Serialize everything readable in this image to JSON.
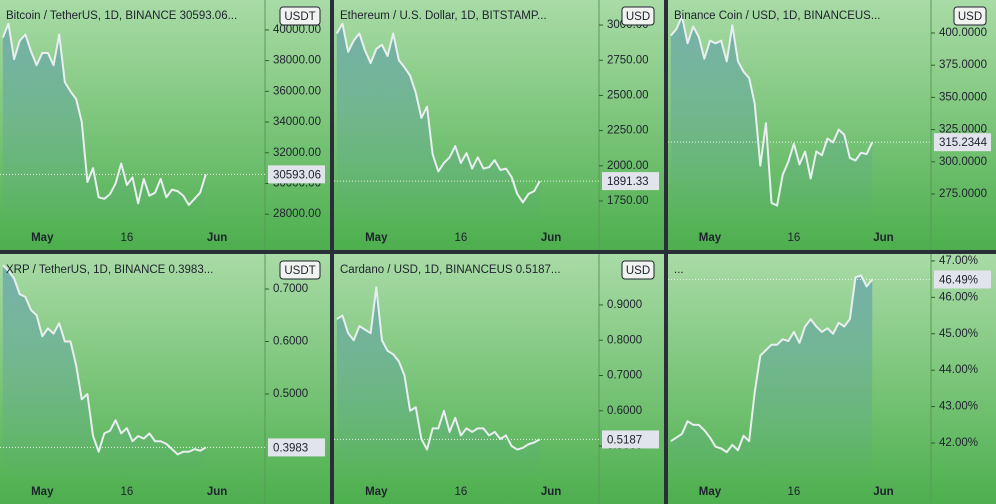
{
  "chart_data": [
    {
      "type": "line",
      "title": "Bitcoin / TetherUS, 1D, BINANCE  30593.06...",
      "currency": "USDT",
      "categories": [
        null,
        null,
        null,
        null,
        null,
        null,
        null,
        "May",
        null,
        null,
        null,
        null,
        null,
        null,
        null,
        null,
        null,
        null,
        null,
        null,
        null,
        null,
        "16",
        null,
        null,
        null,
        null,
        null,
        null,
        null,
        null,
        null,
        null,
        null,
        null,
        null,
        null,
        null,
        "Jun",
        null,
        null,
        null,
        null,
        null,
        null,
        null,
        null
      ],
      "values": [
        39500,
        40400,
        38100,
        39300,
        39700,
        38600,
        37700,
        38500,
        38500,
        37700,
        39700,
        36600,
        36000,
        35500,
        34000,
        30100,
        31000,
        29100,
        29000,
        29300,
        30000,
        31300,
        29900,
        30400,
        28700,
        30300,
        29200,
        29400,
        30300,
        29100,
        29600,
        29500,
        29200,
        28600,
        29000,
        29400,
        30593.06,
        null,
        null,
        null,
        null,
        null,
        null,
        null,
        null,
        null,
        null
      ],
      "ylim": [
        27100,
        41950
      ],
      "yticks": [
        {
          "value": 28000,
          "label": "28000.00"
        },
        {
          "value": 30000,
          "label": "30000.00"
        },
        {
          "value": 32000,
          "label": "32000.00"
        },
        {
          "value": 34000,
          "label": "34000.00"
        },
        {
          "value": 36000,
          "label": "36000.00"
        },
        {
          "value": 38000,
          "label": "38000.00"
        },
        {
          "value": 40000,
          "label": "40000.00"
        }
      ]
    },
    {
      "type": "line",
      "title": "Ethereum / U.S. Dollar, 1D, BITSTAMP...",
      "currency": "USD",
      "categories": [
        null,
        null,
        null,
        null,
        null,
        null,
        null,
        "May",
        null,
        null,
        null,
        null,
        null,
        null,
        null,
        null,
        null,
        null,
        null,
        null,
        null,
        null,
        "16",
        null,
        null,
        null,
        null,
        null,
        null,
        null,
        null,
        null,
        null,
        null,
        null,
        null,
        null,
        null,
        "Jun",
        null,
        null,
        null,
        null,
        null,
        null,
        null,
        null
      ],
      "values": [
        2940,
        3010,
        2810,
        2890,
        2940,
        2820,
        2730,
        2830,
        2860,
        2780,
        2940,
        2750,
        2700,
        2640,
        2520,
        2340,
        2420,
        2080,
        1960,
        2020,
        2060,
        2140,
        2020,
        2090,
        1980,
        2060,
        1980,
        1990,
        2040,
        1970,
        1980,
        1920,
        1800,
        1740,
        1800,
        1820,
        1891.33,
        null,
        null,
        null,
        null,
        null,
        null,
        null,
        null,
        null,
        null
      ],
      "ylim": [
        1558,
        3178
      ],
      "yticks": [
        {
          "value": 1750,
          "label": "1750.00"
        },
        {
          "value": 2000,
          "label": "2000.00"
        },
        {
          "value": 2250,
          "label": "2250.00"
        },
        {
          "value": 2500,
          "label": "2500.00"
        },
        {
          "value": 2750,
          "label": "2750.00"
        },
        {
          "value": 3000,
          "label": "3000.00"
        }
      ]
    },
    {
      "type": "line",
      "title": "Binance Coin / USD, 1D, BINANCEUS...",
      "currency": "USD",
      "categories": [
        null,
        null,
        null,
        null,
        null,
        null,
        null,
        "May",
        null,
        null,
        null,
        null,
        null,
        null,
        null,
        null,
        null,
        null,
        null,
        null,
        null,
        null,
        "16",
        null,
        null,
        null,
        null,
        null,
        null,
        null,
        null,
        null,
        null,
        null,
        null,
        null,
        null,
        null,
        "Jun",
        null,
        null,
        null,
        null,
        null,
        null,
        null,
        null
      ],
      "values": [
        398,
        403,
        413,
        392,
        405,
        397,
        380,
        394,
        392,
        394,
        378,
        406,
        378,
        370,
        365,
        345,
        297,
        330,
        268,
        266,
        290,
        300,
        314,
        298,
        308,
        287,
        308,
        305,
        318,
        315,
        325,
        321,
        303,
        301,
        307,
        306,
        315.2344,
        null,
        null,
        null,
        null,
        null,
        null,
        null,
        null,
        null,
        null
      ],
      "ylim": [
        248.6,
        425.6
      ],
      "yticks": [
        {
          "value": 275,
          "label": "275.0000"
        },
        {
          "value": 300,
          "label": "300.0000"
        },
        {
          "value": 325,
          "label": "325.0000"
        },
        {
          "value": 350,
          "label": "350.0000"
        },
        {
          "value": 375,
          "label": "375.0000"
        },
        {
          "value": 400,
          "label": "400.0000"
        }
      ]
    },
    {
      "type": "line",
      "title": "XRP / TetherUS, 1D, BINANCE  0.3983...",
      "currency": "USDT",
      "categories": [
        null,
        null,
        null,
        null,
        null,
        null,
        null,
        "May",
        null,
        null,
        null,
        null,
        null,
        null,
        null,
        null,
        null,
        null,
        null,
        null,
        null,
        null,
        "16",
        null,
        null,
        null,
        null,
        null,
        null,
        null,
        null,
        null,
        null,
        null,
        null,
        null,
        null,
        null,
        "Jun",
        null,
        null,
        null,
        null,
        null,
        null,
        null,
        null
      ],
      "values": [
        0.745,
        0.735,
        0.72,
        0.69,
        0.685,
        0.66,
        0.65,
        0.61,
        0.625,
        0.615,
        0.635,
        0.6,
        0.6,
        0.555,
        0.49,
        0.5,
        0.42,
        0.39,
        0.425,
        0.43,
        0.45,
        0.425,
        0.435,
        0.41,
        0.42,
        0.415,
        0.425,
        0.41,
        0.41,
        0.405,
        0.395,
        0.385,
        0.39,
        0.39,
        0.395,
        0.392,
        0.3983,
        null,
        null,
        null,
        null,
        null,
        null,
        null,
        null,
        null,
        null
      ],
      "ylim": [
        0.3324,
        0.7667
      ],
      "yticks": [
        {
          "value": 0.5,
          "label": "0.5000"
        },
        {
          "value": 0.6,
          "label": "0.6000"
        },
        {
          "value": 0.7,
          "label": "0.7000"
        }
      ]
    },
    {
      "type": "line",
      "title": "Cardano / USD, 1D, BINANCEUS  0.5187...",
      "currency": "USD",
      "categories": [
        null,
        null,
        null,
        null,
        null,
        null,
        null,
        "May",
        null,
        null,
        null,
        null,
        null,
        null,
        null,
        null,
        null,
        null,
        null,
        null,
        null,
        null,
        "16",
        null,
        null,
        null,
        null,
        null,
        null,
        null,
        null,
        null,
        null,
        null,
        null,
        null,
        null,
        null,
        "Jun",
        null,
        null,
        null,
        null,
        null,
        null,
        null,
        null
      ],
      "values": [
        0.86,
        0.87,
        0.82,
        0.8,
        0.84,
        0.83,
        0.82,
        0.95,
        0.8,
        0.77,
        0.76,
        0.74,
        0.7,
        0.6,
        0.61,
        0.52,
        0.49,
        0.55,
        0.55,
        0.6,
        0.54,
        0.58,
        0.53,
        0.55,
        0.54,
        0.55,
        0.55,
        0.53,
        0.54,
        0.52,
        0.53,
        0.5,
        0.49,
        0.495,
        0.505,
        0.51,
        0.5187,
        null,
        null,
        null,
        null,
        null,
        null,
        null,
        null,
        null,
        null
      ],
      "ylim": [
        0.398,
        1.0445
      ],
      "yticks": [
        {
          "value": 0.5,
          "label": "0.5000"
        },
        {
          "value": 0.6,
          "label": "0.6000"
        },
        {
          "value": 0.7,
          "label": "0.7000"
        },
        {
          "value": 0.8,
          "label": "0.8000"
        },
        {
          "value": 0.9,
          "label": "0.9000"
        }
      ]
    },
    {
      "type": "line",
      "title": "...",
      "categories": [
        null,
        null,
        null,
        null,
        null,
        null,
        null,
        "May",
        null,
        null,
        null,
        null,
        null,
        null,
        null,
        null,
        null,
        null,
        null,
        null,
        null,
        null,
        "16",
        null,
        null,
        null,
        null,
        null,
        null,
        null,
        null,
        null,
        null,
        null,
        null,
        null,
        null,
        null,
        "Jun",
        null,
        null,
        null,
        null,
        null,
        null,
        null,
        null
      ],
      "values": [
        42.05,
        42.15,
        42.25,
        42.6,
        42.5,
        42.5,
        42.35,
        42.15,
        41.9,
        41.85,
        41.75,
        41.95,
        41.8,
        42.2,
        42.05,
        43.4,
        44.4,
        44.55,
        44.7,
        44.7,
        44.85,
        44.8,
        45.05,
        44.75,
        45.2,
        45.4,
        45.2,
        45.05,
        45.15,
        45.0,
        45.3,
        45.2,
        45.4,
        46.55,
        46.6,
        46.3,
        46.49,
        null,
        null,
        null,
        null,
        null,
        null,
        null,
        null,
        null,
        null
      ],
      "value_labels": [
        null,
        null,
        null,
        null,
        null,
        null,
        null,
        null,
        null,
        null,
        null,
        null,
        null,
        null,
        null,
        null,
        null,
        null,
        null,
        null,
        null,
        null,
        null,
        null,
        null,
        null,
        null,
        null,
        null,
        null,
        null,
        null,
        null,
        null,
        null,
        null,
        "46.49%",
        null,
        null,
        null,
        null,
        null,
        null,
        null,
        null,
        null,
        null
      ],
      "ylim": [
        40.93,
        47.19
      ],
      "yticks": [
        {
          "value": 42,
          "label": "42.00%"
        },
        {
          "value": 43,
          "label": "43.00%"
        },
        {
          "value": 44,
          "label": "44.00%"
        },
        {
          "value": 45,
          "label": "45.00%"
        },
        {
          "value": 46,
          "label": "46.00%"
        },
        {
          "value": 47,
          "label": "47.00%"
        }
      ]
    }
  ]
}
